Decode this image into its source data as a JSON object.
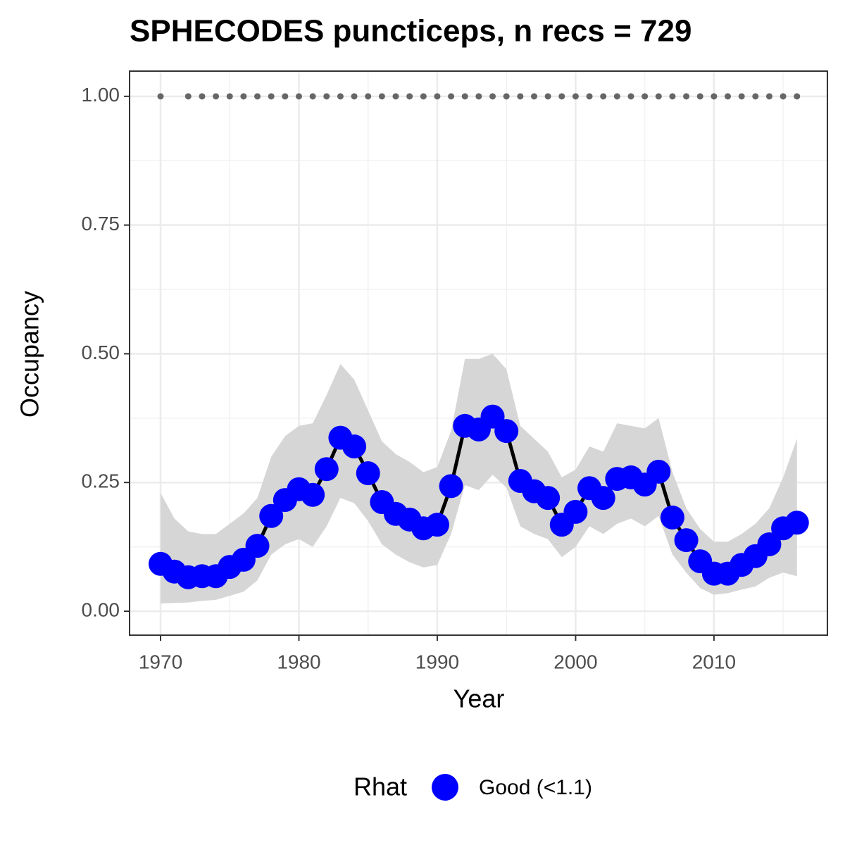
{
  "chart_data": {
    "type": "line",
    "title": "SPHECODES puncticeps, n recs = 729",
    "x_label": "Year",
    "y_label": "Occupancy",
    "legend_title": "Rhat",
    "x": [
      1970,
      1971,
      1972,
      1973,
      1974,
      1975,
      1976,
      1977,
      1978,
      1979,
      1980,
      1981,
      1982,
      1983,
      1984,
      1985,
      1986,
      1987,
      1988,
      1989,
      1990,
      1991,
      1992,
      1993,
      1994,
      1995,
      1996,
      1997,
      1998,
      1999,
      2000,
      2001,
      2002,
      2003,
      2004,
      2005,
      2006,
      2007,
      2008,
      2009,
      2010,
      2011,
      2012,
      2013,
      2014,
      2015,
      2016
    ],
    "series": [
      {
        "name": "Good (<1.1)",
        "color": "#0000ff",
        "line_color": "#000000",
        "band_color": "#d6d6d6",
        "values": [
          0.092,
          0.077,
          0.066,
          0.068,
          0.068,
          0.086,
          0.1,
          0.127,
          0.185,
          0.216,
          0.237,
          0.226,
          0.276,
          0.337,
          0.32,
          0.268,
          0.212,
          0.189,
          0.178,
          0.161,
          0.168,
          0.243,
          0.36,
          0.353,
          0.378,
          0.35,
          0.253,
          0.233,
          0.22,
          0.168,
          0.193,
          0.239,
          0.22,
          0.257,
          0.26,
          0.246,
          0.271,
          0.182,
          0.138,
          0.097,
          0.073,
          0.073,
          0.09,
          0.107,
          0.13,
          0.161,
          0.172
        ],
        "lower": [
          0.015,
          0.016,
          0.017,
          0.02,
          0.022,
          0.03,
          0.038,
          0.06,
          0.11,
          0.13,
          0.14,
          0.125,
          0.165,
          0.22,
          0.21,
          0.175,
          0.13,
          0.11,
          0.095,
          0.085,
          0.09,
          0.15,
          0.245,
          0.235,
          0.265,
          0.24,
          0.165,
          0.15,
          0.14,
          0.105,
          0.125,
          0.165,
          0.15,
          0.17,
          0.18,
          0.165,
          0.185,
          0.11,
          0.075,
          0.045,
          0.032,
          0.035,
          0.042,
          0.048,
          0.065,
          0.075,
          0.068
        ],
        "upper": [
          0.23,
          0.18,
          0.155,
          0.15,
          0.15,
          0.17,
          0.19,
          0.22,
          0.3,
          0.34,
          0.36,
          0.365,
          0.42,
          0.48,
          0.45,
          0.39,
          0.33,
          0.305,
          0.29,
          0.27,
          0.28,
          0.35,
          0.49,
          0.49,
          0.5,
          0.47,
          0.36,
          0.335,
          0.31,
          0.26,
          0.275,
          0.32,
          0.31,
          0.365,
          0.36,
          0.355,
          0.375,
          0.27,
          0.2,
          0.16,
          0.135,
          0.135,
          0.15,
          0.17,
          0.2,
          0.26,
          0.335
        ]
      },
      {
        "color": "#666666",
        "values": [
          1,
          null,
          1,
          1,
          1,
          1,
          1,
          1,
          1,
          1,
          1,
          1,
          1,
          1,
          1,
          1,
          1,
          1,
          1,
          1,
          1,
          1,
          1,
          1,
          1,
          1,
          1,
          1,
          1,
          1,
          1,
          1,
          1,
          1,
          1,
          1,
          1,
          1,
          1,
          1,
          1,
          1,
          1,
          1,
          1,
          1,
          1
        ]
      }
    ],
    "xlim": [
      1967.76,
      2018.2
    ],
    "ylim": [
      -0.0465,
      1.049
    ],
    "xticks": [
      1970,
      1980,
      1990,
      2000,
      2010
    ],
    "yticks": [
      {
        "value": 0,
        "label": "0.00"
      },
      {
        "value": 0.25,
        "label": "0.25"
      },
      {
        "value": 0.5,
        "label": "0.50"
      },
      {
        "value": 0.75,
        "label": "0.75"
      },
      {
        "value": 1,
        "label": "1.00"
      }
    ],
    "grid": true
  }
}
